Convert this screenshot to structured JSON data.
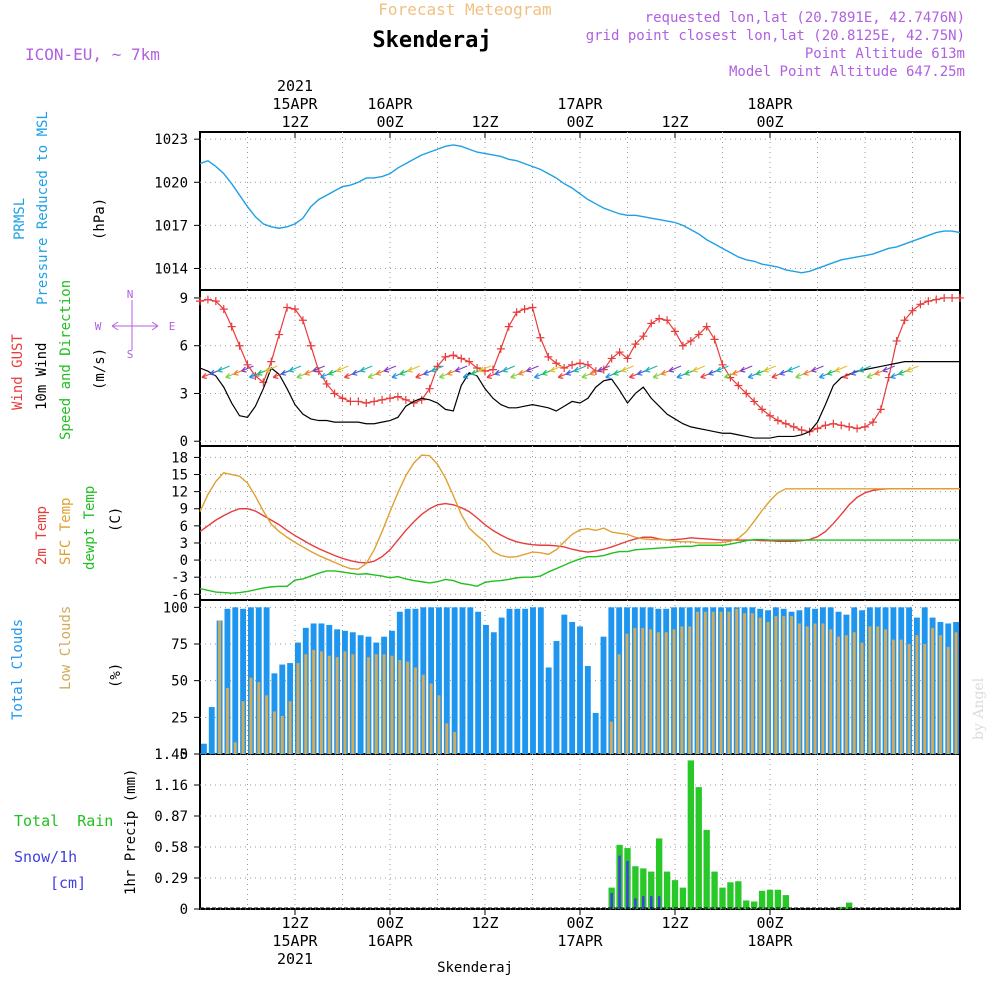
{
  "header": {
    "title_faint": "Forecast Meteogram",
    "location": "Skenderaj",
    "model": "ICON-EU, ~ 7km",
    "requested": "requested lon,lat (20.7891E, 42.7476N)",
    "gridpoint": "grid point closest lon,lat (20.8125E, 42.75N)",
    "altitude": "Point Altitude 613m",
    "model_altitude": "Model Point Altitude 647.25m",
    "footer": "Skenderaj",
    "watermark": "by Angel"
  },
  "top_axis": {
    "ticks": [
      {
        "t": 12,
        "lines": [
          "2021",
          "15APR",
          "12Z"
        ]
      },
      {
        "t": 24,
        "lines": [
          "16APR",
          "00Z"
        ]
      },
      {
        "t": 36,
        "lines": [
          "12Z"
        ]
      },
      {
        "t": 48,
        "lines": [
          "17APR",
          "00Z"
        ]
      },
      {
        "t": 60,
        "lines": [
          "12Z"
        ]
      },
      {
        "t": 72,
        "lines": [
          "18APR",
          "00Z"
        ]
      }
    ]
  },
  "bottom_axis": {
    "ticks": [
      {
        "t": 12,
        "lines": [
          "12Z",
          "15APR",
          "2021"
        ]
      },
      {
        "t": 24,
        "lines": [
          "00Z",
          "16APR"
        ]
      },
      {
        "t": 36,
        "lines": [
          "12Z"
        ]
      },
      {
        "t": 48,
        "lines": [
          "00Z",
          "17APR"
        ]
      },
      {
        "t": 60,
        "lines": [
          "12Z"
        ]
      },
      {
        "t": 72,
        "lines": [
          "00Z",
          "18APR"
        ]
      }
    ]
  },
  "labels": {
    "pressure": [
      "PRMSL",
      "Pressure Reduced to MSL",
      "(hPa)"
    ],
    "wind": [
      "Wind GUST",
      "10m Wind",
      "Speed and Direction",
      "(m/s)"
    ],
    "compass": {
      "n": "N",
      "s": "S",
      "w": "W",
      "e": "E"
    },
    "temp": [
      "2m Temp",
      "SFC Temp",
      "dewpt Temp",
      "(C)"
    ],
    "clouds": [
      "Total Clouds",
      "Low Clouds",
      "(%)"
    ],
    "precip": [
      "Total  Rain",
      "Snow/1h",
      "[cm]",
      "1hr Precip (mm)"
    ]
  },
  "colors": {
    "pressure": "#1ea0e6",
    "gust": "#e83c3c",
    "wind": "#000000",
    "temp2m": "#e83c3c",
    "sfc": "#e0a030",
    "dew": "#20c020",
    "total_cloud": "#1e96f0",
    "low_cloud": "#d2aa5a",
    "rain": "#28c828",
    "snow": "#4040e0",
    "purple": "#b060e0",
    "title_faint": "#f0c080"
  },
  "chart_data": [
    {
      "type": "line",
      "name": "pressure",
      "ylim": [
        1012.5,
        1023.5
      ],
      "yticks": [
        1014,
        1017,
        1020,
        1023
      ],
      "x": [
        0,
        1,
        2,
        3,
        4,
        5,
        6,
        7,
        8,
        9,
        10,
        11,
        12,
        13,
        14,
        15,
        16,
        17,
        18,
        19,
        20,
        21,
        22,
        23,
        24,
        25,
        26,
        27,
        28,
        29,
        30,
        31,
        32,
        33,
        34,
        35,
        36,
        37,
        38,
        39,
        40,
        41,
        42,
        43,
        44,
        45,
        46,
        47,
        48,
        49,
        50,
        51,
        52,
        53,
        54,
        55,
        56,
        57,
        58,
        59,
        60,
        61,
        62,
        63,
        64,
        65,
        66,
        67,
        68,
        69,
        70,
        71,
        72,
        73,
        74,
        75,
        76,
        77,
        78,
        79,
        80,
        81,
        82,
        83,
        84,
        85,
        86,
        87,
        88,
        89,
        90,
        91,
        92,
        93,
        94,
        95,
        96
      ],
      "values": [
        1021.3,
        1021.5,
        1021.1,
        1020.6,
        1019.9,
        1019.1,
        1018.3,
        1017.6,
        1017.1,
        1016.9,
        1016.8,
        1016.9,
        1017.1,
        1017.5,
        1018.3,
        1018.8,
        1019.1,
        1019.4,
        1019.7,
        1019.8,
        1020.0,
        1020.3,
        1020.3,
        1020.4,
        1020.6,
        1021.0,
        1021.3,
        1021.6,
        1021.9,
        1022.1,
        1022.3,
        1022.5,
        1022.6,
        1022.5,
        1022.3,
        1022.1,
        1022.0,
        1021.9,
        1021.8,
        1021.6,
        1021.5,
        1021.3,
        1021.1,
        1020.9,
        1020.6,
        1020.3,
        1019.9,
        1019.6,
        1019.2,
        1018.8,
        1018.5,
        1018.2,
        1018.0,
        1017.8,
        1017.7,
        1017.7,
        1017.6,
        1017.5,
        1017.4,
        1017.3,
        1017.2,
        1017.0,
        1016.7,
        1016.4,
        1016.0,
        1015.7,
        1015.4,
        1015.1,
        1014.8,
        1014.6,
        1014.5,
        1014.3,
        1014.2,
        1014.1,
        1013.9,
        1013.8,
        1013.7,
        1013.8,
        1014.0,
        1014.2,
        1014.4,
        1014.6,
        1014.7,
        1014.8,
        1014.9,
        1015.0,
        1015.2,
        1015.4,
        1015.5,
        1015.7,
        1015.9,
        1016.1,
        1016.3,
        1016.5,
        1016.6,
        1016.6,
        1016.5
      ],
      "series_values_note": ""
    },
    {
      "type": "line",
      "name": "wind",
      "ylim": [
        -0.3,
        9.5
      ],
      "yticks": [
        0,
        3,
        6,
        9
      ],
      "x": [
        0,
        1,
        2,
        3,
        4,
        5,
        6,
        7,
        8,
        9,
        10,
        11,
        12,
        13,
        14,
        15,
        16,
        17,
        18,
        19,
        20,
        21,
        22,
        23,
        24,
        25,
        26,
        27,
        28,
        29,
        30,
        31,
        32,
        33,
        34,
        35,
        36,
        37,
        38,
        39,
        40,
        41,
        42,
        43,
        44,
        45,
        46,
        47,
        48,
        49,
        50,
        51,
        52,
        53,
        54,
        55,
        56,
        57,
        58,
        59,
        60,
        61,
        62,
        63,
        64,
        65,
        66,
        67,
        68,
        69,
        70,
        71,
        72,
        73,
        74,
        75,
        76,
        77,
        78,
        79,
        80,
        81,
        82,
        83,
        84,
        85,
        86,
        87,
        88,
        89,
        90,
        91,
        92,
        93,
        94,
        95,
        96
      ],
      "gust": [
        8.8,
        8.9,
        8.8,
        8.3,
        7.2,
        6.0,
        4.8,
        4.1,
        3.7,
        5.0,
        6.7,
        8.4,
        8.3,
        7.6,
        6.0,
        4.4,
        3.6,
        3.0,
        2.7,
        2.5,
        2.5,
        2.4,
        2.5,
        2.6,
        2.7,
        2.8,
        2.6,
        2.4,
        2.6,
        3.3,
        4.7,
        5.3,
        5.4,
        5.2,
        5.0,
        4.6,
        4.4,
        4.5,
        5.8,
        7.2,
        8.1,
        8.3,
        8.4,
        6.5,
        5.3,
        4.9,
        4.6,
        4.8,
        4.9,
        4.8,
        4.4,
        4.5,
        5.2,
        5.6,
        5.2,
        6.1,
        6.6,
        7.4,
        7.7,
        7.6,
        6.9,
        6.0,
        6.3,
        6.7,
        7.2,
        6.4,
        4.8,
        4.0,
        3.5,
        3.0,
        2.5,
        2.0,
        1.6,
        1.3,
        1.1,
        0.9,
        0.7,
        0.6,
        0.8,
        1.0,
        1.1,
        1.0,
        0.9,
        0.8,
        0.9,
        1.2,
        2.0,
        4.0,
        6.3,
        7.6,
        8.2,
        8.6,
        8.8,
        8.9,
        9.0,
        9.0,
        9.0
      ],
      "speed": [
        4.6,
        4.4,
        4.1,
        3.4,
        2.4,
        1.6,
        1.5,
        2.2,
        3.3,
        4.6,
        4.2,
        3.3,
        2.3,
        1.7,
        1.4,
        1.3,
        1.3,
        1.2,
        1.2,
        1.2,
        1.2,
        1.1,
        1.1,
        1.2,
        1.3,
        1.5,
        2.2,
        2.5,
        2.7,
        2.6,
        2.4,
        2.0,
        1.9,
        3.5,
        4.3,
        4.1,
        3.3,
        2.7,
        2.3,
        2.1,
        2.1,
        2.2,
        2.3,
        2.2,
        2.1,
        1.9,
        2.2,
        2.5,
        2.4,
        2.7,
        3.4,
        3.8,
        3.9,
        3.2,
        2.4,
        3.0,
        3.4,
        2.7,
        2.2,
        1.7,
        1.4,
        1.1,
        0.9,
        0.8,
        0.7,
        0.6,
        0.5,
        0.5,
        0.4,
        0.3,
        0.2,
        0.2,
        0.2,
        0.3,
        0.3,
        0.3,
        0.4,
        0.6,
        1.2,
        2.3,
        3.5,
        4.0,
        4.2,
        4.4,
        4.5,
        4.6,
        4.7,
        4.8,
        4.9,
        5.0,
        5.0,
        5.0,
        5.0,
        5.0,
        5.0,
        5.0,
        5.0
      ]
    },
    {
      "type": "line",
      "name": "temperature",
      "ylim": [
        -7,
        20
      ],
      "yticks": [
        -6,
        -3,
        0,
        3,
        6,
        9,
        12,
        15,
        18
      ],
      "x": [
        0,
        1,
        2,
        3,
        4,
        5,
        6,
        7,
        8,
        9,
        10,
        11,
        12,
        13,
        14,
        15,
        16,
        17,
        18,
        19,
        20,
        21,
        22,
        23,
        24,
        25,
        26,
        27,
        28,
        29,
        30,
        31,
        32,
        33,
        34,
        35,
        36,
        37,
        38,
        39,
        40,
        41,
        42,
        43,
        44,
        45,
        46,
        47,
        48,
        49,
        50,
        51,
        52,
        53,
        54,
        55,
        56,
        57,
        58,
        59,
        60,
        61,
        62,
        63,
        64,
        65,
        66,
        67,
        68,
        69,
        70,
        71,
        72,
        73,
        74,
        75,
        76,
        77,
        78,
        79,
        80,
        81,
        82,
        83,
        84,
        85,
        86,
        87,
        88,
        89,
        90,
        91,
        92,
        93,
        94,
        95,
        96
      ],
      "t2m": [
        5.0,
        6.0,
        7.0,
        7.8,
        8.5,
        9.0,
        9.0,
        8.6,
        7.8,
        7.0,
        6.2,
        5.2,
        4.3,
        3.5,
        2.7,
        2.0,
        1.4,
        0.8,
        0.3,
        -0.1,
        -0.4,
        -0.5,
        -0.2,
        0.6,
        1.8,
        3.5,
        5.2,
        6.7,
        8.0,
        9.0,
        9.7,
        9.9,
        9.7,
        9.2,
        8.5,
        7.4,
        6.2,
        5.2,
        4.4,
        3.7,
        3.2,
        2.9,
        2.7,
        2.6,
        2.6,
        2.5,
        2.3,
        1.9,
        1.6,
        1.4,
        1.6,
        1.9,
        2.3,
        2.8,
        3.3,
        3.7,
        4.0,
        4.0,
        3.7,
        3.5,
        3.6,
        3.7,
        3.9,
        3.8,
        3.7,
        3.6,
        3.5,
        3.5,
        3.5,
        3.5,
        3.5,
        3.4,
        3.4,
        3.3,
        3.3,
        3.3,
        3.4,
        3.6,
        4.1,
        5.0,
        6.4,
        8.0,
        9.7,
        11.0,
        11.8,
        12.2,
        12.4,
        12.5,
        12.5,
        12.5,
        12.5,
        12.5,
        12.5,
        12.5,
        12.5,
        12.5,
        12.5
      ],
      "sfc": [
        8.5,
        11.5,
        13.8,
        15.3,
        15.0,
        14.7,
        13.5,
        11.2,
        8.6,
        6.3,
        5.0,
        4.0,
        3.1,
        2.3,
        1.5,
        0.8,
        0.2,
        -0.4,
        -1.0,
        -1.5,
        -1.6,
        -0.6,
        1.8,
        5.0,
        8.5,
        11.8,
        14.8,
        17.0,
        18.4,
        18.3,
        16.8,
        14.4,
        11.3,
        8.0,
        5.6,
        4.3,
        3.2,
        1.5,
        0.8,
        0.5,
        0.6,
        1.0,
        1.4,
        1.3,
        1.0,
        1.8,
        3.2,
        4.5,
        5.3,
        5.5,
        5.2,
        5.6,
        4.9,
        4.7,
        4.5,
        4.0,
        3.7,
        3.6,
        3.6,
        3.5,
        3.3,
        3.2,
        3.2,
        3.0,
        3.0,
        3.0,
        3.1,
        3.3,
        3.8,
        5.0,
        6.8,
        8.7,
        10.4,
        11.8,
        12.5,
        12.5,
        12.5,
        12.5,
        12.5,
        12.5,
        12.5,
        12.5,
        12.5,
        12.5,
        12.5,
        12.5,
        12.5,
        12.5,
        12.5,
        12.5,
        12.5,
        12.5,
        12.5,
        12.5,
        12.5,
        12.5,
        12.5
      ],
      "dew": [
        -5.0,
        -5.3,
        -5.6,
        -5.7,
        -5.8,
        -5.7,
        -5.5,
        -5.2,
        -4.9,
        -4.7,
        -4.6,
        -4.6,
        -3.5,
        -3.3,
        -2.8,
        -2.3,
        -1.9,
        -1.9,
        -2.1,
        -2.3,
        -2.5,
        -2.4,
        -2.6,
        -2.8,
        -3.1,
        -2.9,
        -3.3,
        -3.6,
        -3.8,
        -4.0,
        -3.8,
        -3.4,
        -3.6,
        -4.1,
        -4.3,
        -4.6,
        -3.9,
        -3.7,
        -3.6,
        -3.4,
        -3.1,
        -3.0,
        -3.0,
        -2.8,
        -2.1,
        -1.5,
        -0.9,
        -0.3,
        0.2,
        0.6,
        0.6,
        0.8,
        1.2,
        1.5,
        1.5,
        1.8,
        1.9,
        2.0,
        2.1,
        2.2,
        2.3,
        2.4,
        2.4,
        2.6,
        2.6,
        2.6,
        2.6,
        2.8,
        3.1,
        3.4,
        3.6,
        3.6,
        3.5,
        3.5,
        3.5,
        3.5,
        3.5,
        3.5,
        3.5,
        3.5,
        3.5,
        3.5,
        3.5,
        3.5,
        3.5,
        3.5,
        3.5,
        3.5,
        3.5,
        3.5,
        3.5,
        3.5,
        3.5,
        3.5,
        3.5,
        3.5,
        3.5
      ]
    },
    {
      "type": "bar",
      "name": "clouds",
      "ylim": [
        0,
        105
      ],
      "yticks": [
        0,
        25,
        50,
        75,
        100
      ],
      "total": [
        7,
        32,
        91,
        99,
        100,
        99,
        100,
        100,
        100,
        55,
        61,
        62,
        76,
        86,
        89,
        89,
        88,
        85,
        84,
        83,
        81,
        80,
        76,
        80,
        84,
        97,
        99,
        99,
        100,
        100,
        100,
        100,
        100,
        100,
        100,
        97,
        88,
        83,
        93,
        99,
        99,
        99,
        100,
        100,
        59,
        77,
        95,
        90,
        87,
        60,
        28,
        80,
        100,
        100,
        100,
        100,
        100,
        100,
        99,
        99,
        100,
        100,
        100,
        100,
        100,
        100,
        100,
        100,
        100,
        100,
        100,
        99,
        98,
        100,
        99,
        97,
        98,
        100,
        99,
        100,
        100,
        97,
        95,
        100,
        98,
        100,
        100,
        100,
        100,
        100,
        100,
        93,
        100,
        93,
        90,
        89,
        90
      ],
      "low": [
        0,
        0,
        91,
        45,
        8,
        36,
        52,
        49,
        40,
        29,
        26,
        36,
        62,
        68,
        71,
        70,
        67,
        66,
        70,
        68,
        0,
        66,
        68,
        68,
        67,
        64,
        63,
        59,
        54,
        48,
        40,
        21,
        15,
        0,
        0,
        0,
        0,
        0,
        0,
        0,
        0,
        0,
        0,
        0,
        0,
        0,
        0,
        0,
        0,
        0,
        0,
        0,
        22,
        68,
        82,
        86,
        86,
        85,
        83,
        83,
        85,
        87,
        87,
        97,
        97,
        97,
        97,
        97,
        99,
        96,
        96,
        93,
        90,
        94,
        94,
        94,
        89,
        87,
        89,
        89,
        85,
        80,
        81,
        83,
        76,
        87,
        87,
        85,
        78,
        78,
        75,
        81,
        75,
        86,
        81,
        73,
        83
      ]
    },
    {
      "type": "bar",
      "name": "precipitation",
      "ylim": [
        0,
        1.45
      ],
      "yticks": [
        0,
        0.29,
        0.58,
        0.87,
        1.16,
        1.45
      ],
      "x": [
        52,
        53,
        54,
        55,
        56,
        57,
        58,
        59,
        60,
        61,
        62,
        63,
        64,
        65,
        66,
        67,
        68,
        69,
        70,
        71,
        72,
        73,
        74,
        75,
        76,
        77,
        78,
        79,
        80,
        81,
        82,
        83,
        84,
        85,
        86,
        87,
        88,
        89,
        90,
        91,
        92,
        93,
        94,
        95,
        96
      ],
      "rain": [
        0.2,
        0.6,
        0.57,
        0.4,
        0.38,
        0.35,
        0.66,
        0.35,
        0.27,
        0.2,
        1.39,
        1.14,
        0.74,
        0.35,
        0.2,
        0.25,
        0.26,
        0.08,
        0.07,
        0.17,
        0.18,
        0.18,
        0.13,
        0.0,
        0.0,
        0.0,
        0.0,
        0.0,
        0.0,
        0.02,
        0.06,
        0.0,
        0.0,
        0.0,
        0.0,
        0.0,
        0.0,
        0.0,
        0.0,
        0.0,
        0.0,
        0.0,
        0.0,
        0.0,
        0.0
      ],
      "snow": [
        0.15,
        0.5,
        0.45,
        0.1,
        0.12,
        0.12,
        0.12,
        0.0,
        0.0,
        0.0,
        0.0,
        0.0,
        0.0,
        0.0,
        0.0,
        0.0,
        0.0,
        0.0,
        0.0,
        0.0,
        0.0,
        0.0,
        0.0,
        0.0,
        0.0,
        0.0,
        0.0,
        0.0,
        0.0,
        0.0,
        0.0,
        0.0,
        0.0,
        0.0,
        0.0,
        0.0,
        0.0,
        0.0,
        0.0,
        0.0,
        0.0,
        0.0,
        0.0,
        0.0,
        0.0
      ]
    }
  ]
}
